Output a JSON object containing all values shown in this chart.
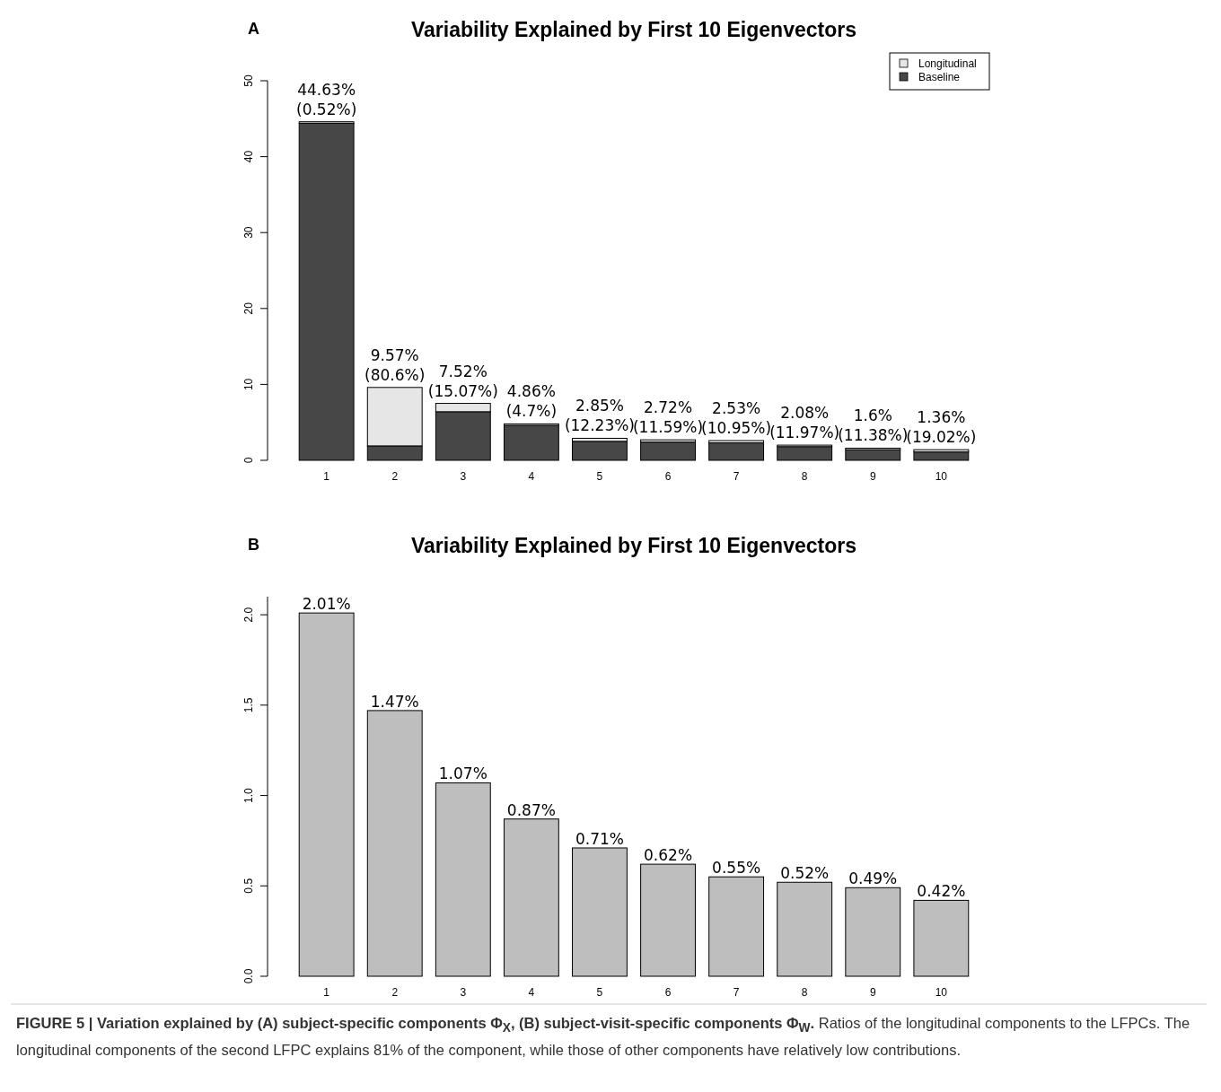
{
  "chart_data": [
    {
      "type": "bar",
      "title": "Variability Explained by First 10 Eigenvectors",
      "categories": [
        "1",
        "2",
        "3",
        "4",
        "5",
        "6",
        "7",
        "8",
        "9",
        "10"
      ],
      "stacked": true,
      "series": [
        {
          "name": "Baseline",
          "color": "#474747",
          "values": [
            44.4,
            1.9,
            6.4,
            4.6,
            2.5,
            2.4,
            2.3,
            1.8,
            1.4,
            1.1
          ]
        },
        {
          "name": "Longitudinal",
          "color": "#e6e6e6",
          "values": [
            0.2,
            7.7,
            1.1,
            0.2,
            0.4,
            0.3,
            0.3,
            0.2,
            0.2,
            0.3
          ]
        }
      ],
      "totals": [
        "44.63% (0.52%)",
        "9.57% (80.6%)",
        "7.52% (15.07%)",
        "4.86% (4.7%)",
        "2.85% (12.23%)",
        "2.72% (11.59%)",
        "2.53% (10.95%)",
        "2.08% (11.97%)",
        "1.6% (11.38%)",
        "1.36% (19.02%)"
      ],
      "ylim": [
        0,
        50
      ],
      "yticks": [
        0,
        10,
        20,
        30,
        40,
        50
      ],
      "legend": "top right",
      "annotations": [
        "A"
      ]
    },
    {
      "type": "bar",
      "title": "Variability Explained by First 10 Eigenvectors",
      "categories": [
        "1",
        "2",
        "3",
        "4",
        "5",
        "6",
        "7",
        "8",
        "9",
        "10"
      ],
      "values": [
        2.01,
        1.47,
        1.07,
        0.87,
        0.71,
        0.62,
        0.55,
        0.52,
        0.49,
        0.42
      ],
      "color": "#bebebe",
      "value_labels": [
        "2.01%",
        "1.47%",
        "1.07%",
        "0.87%",
        "0.71%",
        "0.62%",
        "0.55%",
        "0.52%",
        "0.49%",
        "0.42%"
      ],
      "ylim": [
        0,
        2.1
      ],
      "yticks": [
        {
          "value": 0,
          "label": "0.0"
        },
        {
          "value": 0.5,
          "label": "0.5"
        },
        {
          "value": 1,
          "label": "1.0"
        },
        {
          "value": 1.5,
          "label": "1.5"
        },
        {
          "value": 2,
          "label": "2.0"
        }
      ],
      "annotations": [
        "B",
        "FIGURE 5 | Variation explained by (A) subject-specific components Φ$_{X}$, (B) subject-visit-specific components Φ$_{W}$.",
        "Ratios of the longitudinal components to the LFPCs. The longitudinal components of the second LFPC explains 81% of the component, while those of other components have relatively low contributions."
      ]
    }
  ]
}
